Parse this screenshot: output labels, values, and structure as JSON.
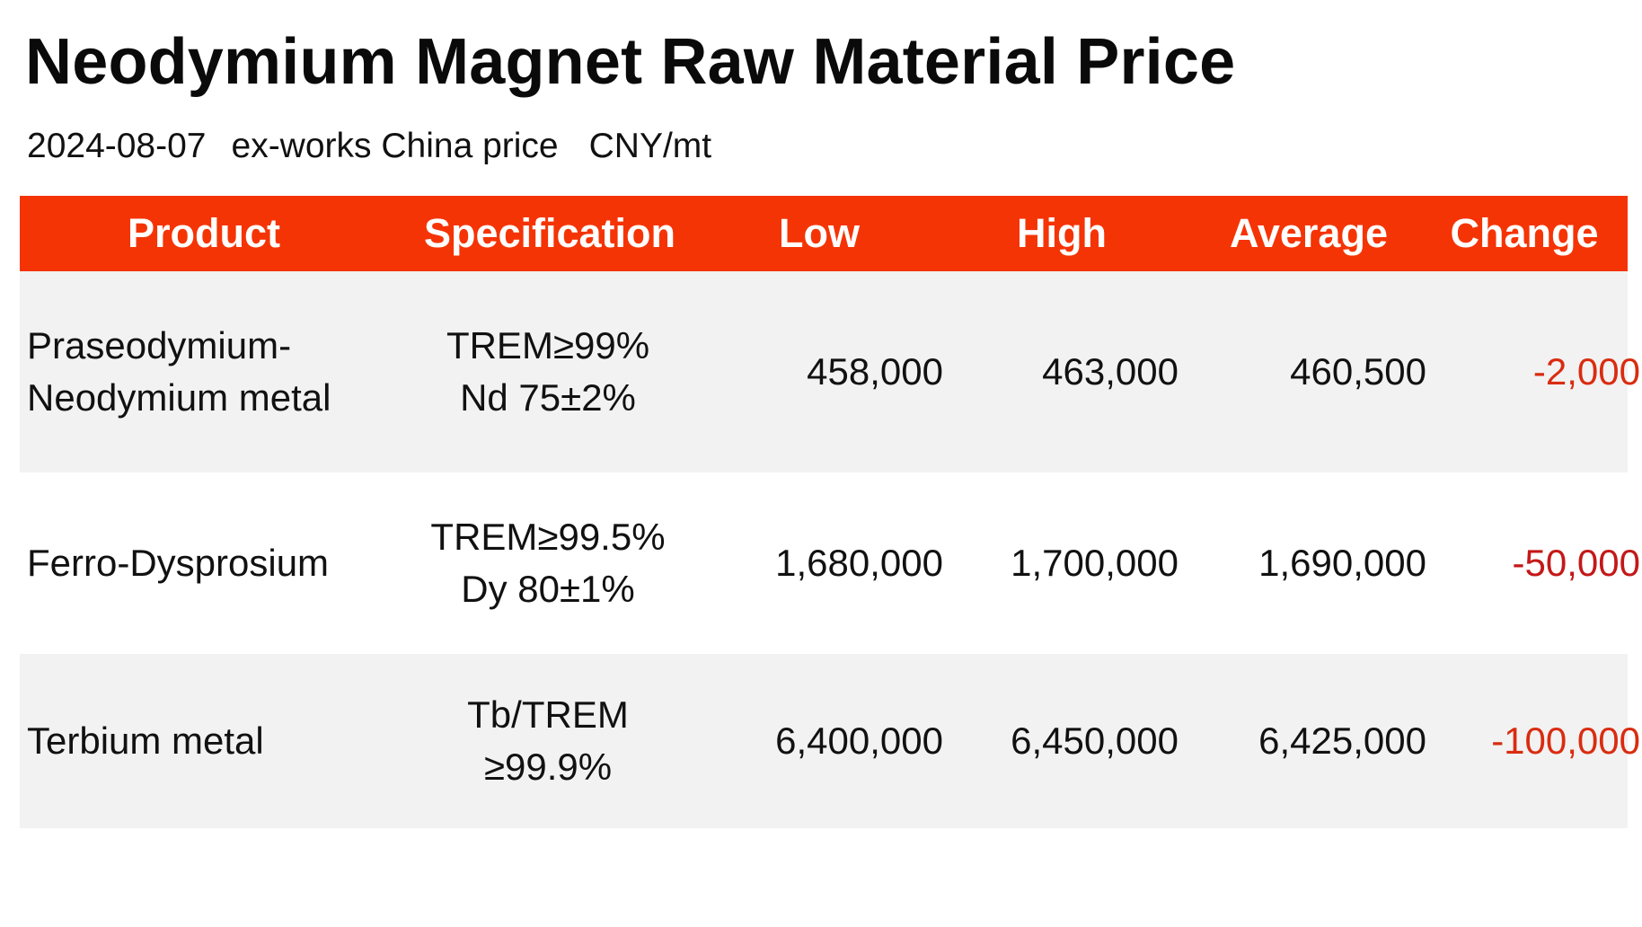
{
  "page": {
    "title": "Neodymium Magnet Raw Material Price",
    "date": "2024-08-07",
    "description": "ex-works China price",
    "unit": "CNY/mt"
  },
  "table": {
    "header_color": "#f53405",
    "columns": [
      "Product",
      "Specification",
      "Low",
      "High",
      "Average",
      "Change"
    ],
    "rows": [
      {
        "product_lines": [
          "Praseodymium-",
          "Neodymium metal"
        ],
        "spec_lines": [
          "TREM≥99%",
          "Nd 75±2%"
        ],
        "low": "458,000",
        "high": "463,000",
        "average": "460,500",
        "change": "-2,000",
        "change_color": "#d92c10"
      },
      {
        "product_lines": [
          "Ferro-Dysprosium"
        ],
        "spec_lines": [
          "TREM≥99.5%",
          "Dy 80±1%"
        ],
        "low": "1,680,000",
        "high": "1,700,000",
        "average": "1,690,000",
        "change": "-50,000",
        "change_color": "#c41818"
      },
      {
        "product_lines": [
          "Terbium metal"
        ],
        "spec_lines": [
          "Tb/TREM",
          "≥99.9%"
        ],
        "low": "6,400,000",
        "high": "6,450,000",
        "average": "6,425,000",
        "change": "-100,000",
        "change_color": "#d92c10"
      }
    ]
  }
}
